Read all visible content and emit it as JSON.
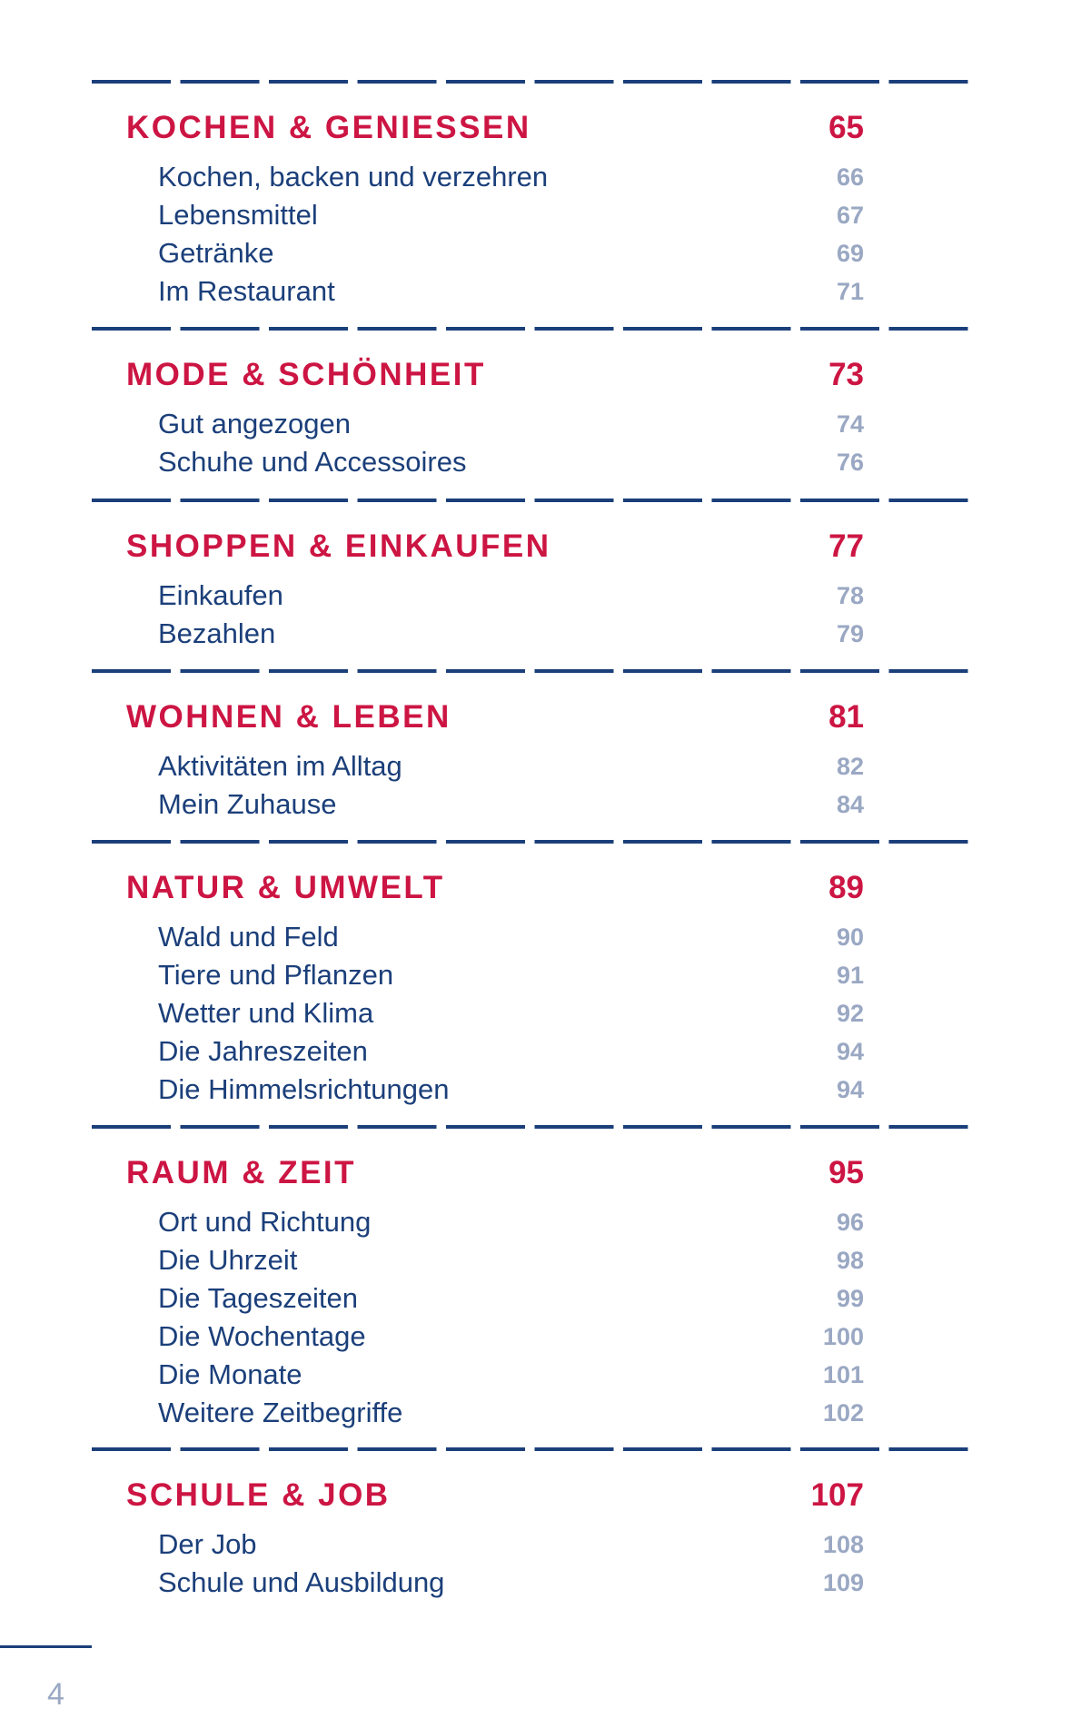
{
  "sections": [
    {
      "title": "KOCHEN & GENIESSEN",
      "page": "65",
      "items": [
        {
          "label": "Kochen, backen und verzehren",
          "page": "66"
        },
        {
          "label": "Lebensmittel",
          "page": "67"
        },
        {
          "label": "Getränke",
          "page": "69"
        },
        {
          "label": "Im Restaurant",
          "page": "71"
        }
      ]
    },
    {
      "title": "MODE & SCHÖNHEIT",
      "page": "73",
      "items": [
        {
          "label": "Gut angezogen",
          "page": "74"
        },
        {
          "label": "Schuhe und Accessoires",
          "page": "76"
        }
      ]
    },
    {
      "title": "SHOPPEN & EINKAUFEN",
      "page": "77",
      "items": [
        {
          "label": "Einkaufen",
          "page": "78"
        },
        {
          "label": "Bezahlen",
          "page": "79"
        }
      ]
    },
    {
      "title": "WOHNEN & LEBEN",
      "page": "81",
      "items": [
        {
          "label": "Aktivitäten im Alltag",
          "page": "82"
        },
        {
          "label": "Mein Zuhause",
          "page": "84"
        }
      ]
    },
    {
      "title": "NATUR & UMWELT",
      "page": "89",
      "items": [
        {
          "label": "Wald und Feld",
          "page": "90"
        },
        {
          "label": "Tiere und Pflanzen",
          "page": "91"
        },
        {
          "label": "Wetter und Klima",
          "page": "92"
        },
        {
          "label": "Die Jahreszeiten",
          "page": "94"
        },
        {
          "label": "Die Himmelsrichtungen",
          "page": "94"
        }
      ]
    },
    {
      "title": "RAUM & ZEIT",
      "page": "95",
      "items": [
        {
          "label": "Ort und Richtung",
          "page": "96"
        },
        {
          "label": "Die Uhrzeit",
          "page": "98"
        },
        {
          "label": "Die Tageszeiten",
          "page": "99"
        },
        {
          "label": "Die Wochentage",
          "page": "100"
        },
        {
          "label": "Die Monate",
          "page": "101"
        },
        {
          "label": "Weitere Zeitbegriffe",
          "page": "102"
        }
      ]
    },
    {
      "title": "SCHULE & JOB",
      "page": "107",
      "items": [
        {
          "label": "Der Job",
          "page": "108"
        },
        {
          "label": "Schule und Ausbildung",
          "page": "109"
        }
      ]
    }
  ],
  "footer": {
    "page_number": "4"
  },
  "colors": {
    "heading": "#cc1543",
    "item_text": "#1b3f7a",
    "item_page": "#9aa8c3",
    "rule": "#1b3f7a"
  }
}
